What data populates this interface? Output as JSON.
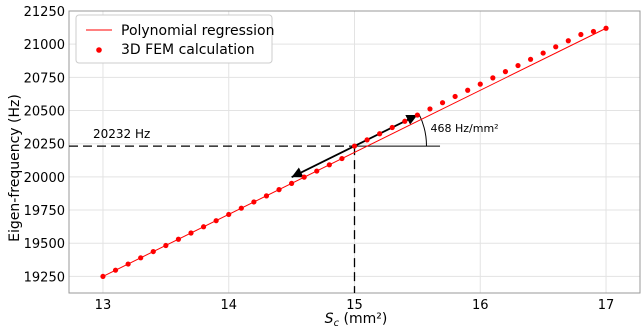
{
  "chart_data": {
    "type": "scatter",
    "xlabel_main": "S",
    "xlabel_sub": "c",
    "xlabel_unit": " (mm²)",
    "ylabel": "Eigen-frequency (Hz)",
    "xlim": [
      12.73,
      17.27
    ],
    "ylim": [
      19125,
      21250
    ],
    "x_ticks": [
      13,
      14,
      15,
      16,
      17
    ],
    "y_ticks": [
      19250,
      19500,
      19750,
      20000,
      20250,
      20500,
      20750,
      21000,
      21250
    ],
    "grid": true,
    "legend_position": "top-left",
    "series": [
      {
        "name": "Polynomial regression",
        "kind": "line",
        "color": "#ff0000",
        "x": [
          13,
          17
        ],
        "y": [
          19250,
          21120
        ]
      },
      {
        "name": "3D FEM calculation",
        "kind": "scatter",
        "color": "#ff0000",
        "x": [
          13.0,
          13.1,
          13.2,
          13.3,
          13.4,
          13.5,
          13.6,
          13.7,
          13.8,
          13.9,
          14.0,
          14.1,
          14.2,
          14.3,
          14.4,
          14.5,
          14.6,
          14.7,
          14.8,
          14.9,
          15.0,
          15.1,
          15.2,
          15.3,
          15.4,
          15.5,
          15.6,
          15.7,
          15.8,
          15.9,
          16.0,
          16.1,
          16.2,
          16.3,
          16.4,
          16.5,
          16.6,
          16.7,
          16.8,
          16.9,
          17.0
        ],
        "y": [
          19250,
          19297,
          19343,
          19390,
          19437,
          19483,
          19530,
          19577,
          19624,
          19670,
          19717,
          19764,
          19811,
          19857,
          19904,
          19951,
          19998,
          20044,
          20091,
          20138,
          20232,
          20279,
          20325,
          20372,
          20419,
          20466,
          20512,
          20559,
          20606,
          20653,
          20699,
          20746,
          20793,
          20839,
          20886,
          20933,
          20980,
          21026,
          21073,
          21096,
          21120
        ]
      }
    ],
    "annotations": {
      "point": {
        "x": 15,
        "y": 20232
      },
      "y_label": "20232 Hz",
      "slope_label": "468 Hz/mm²",
      "tangent_from": {
        "x": 14.5,
        "y": 19998
      },
      "tangent_to": {
        "x": 15.5,
        "y": 20466
      },
      "horizontal_to_x": 15.68
    }
  }
}
